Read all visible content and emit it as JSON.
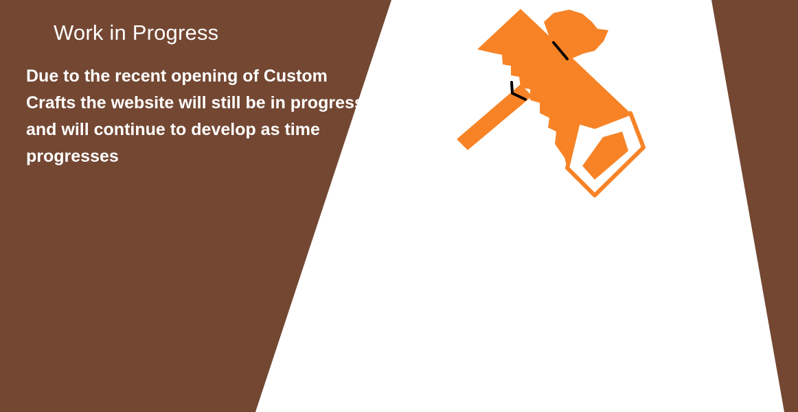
{
  "page": {
    "heading": "Work in Progress",
    "message": "Due to the recent opening of Custom Crafts the website will still be in progress and will continue to develop as time progresses"
  },
  "illustration": {
    "icon": "hammer-and-saw-icon",
    "color": "#F78326"
  },
  "colors": {
    "background": "#734732",
    "light_beam": "#FFFFFF",
    "text": "#FFFFFF",
    "accent": "#F78326",
    "outline": "#000000"
  }
}
